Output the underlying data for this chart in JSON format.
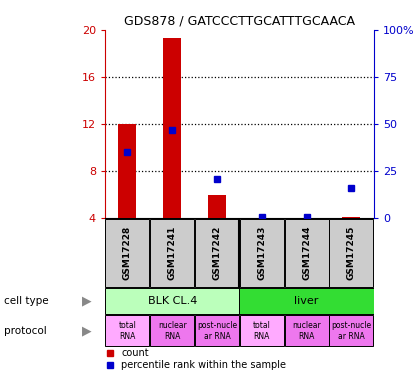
{
  "title": "GDS878 / GATCCCTTGCATTTGCAACA",
  "samples": [
    "GSM17228",
    "GSM17241",
    "GSM17242",
    "GSM17243",
    "GSM17244",
    "GSM17245"
  ],
  "counts": [
    12.0,
    19.3,
    6.0,
    4.05,
    4.05,
    4.1
  ],
  "pct_raw": [
    35,
    47,
    21,
    0.5,
    0.5,
    16
  ],
  "ylim_left": [
    4,
    20
  ],
  "ylim_right": [
    0,
    100
  ],
  "yticks_left": [
    4,
    8,
    12,
    16,
    20
  ],
  "yticks_right": [
    0,
    25,
    50,
    75,
    100
  ],
  "ytick_labels_left": [
    "4",
    "8",
    "12",
    "16",
    "20"
  ],
  "ytick_labels_right": [
    "0",
    "25",
    "50",
    "75",
    "100%"
  ],
  "left_axis_color": "#cc0000",
  "right_axis_color": "#0000cc",
  "bar_color": "#cc0000",
  "dot_color": "#0000cc",
  "cell_type_colors": [
    "#bbffbb",
    "#33dd33"
  ],
  "cell_type_labels": [
    "BLK CL.4",
    "liver"
  ],
  "proto_colors": [
    "#ffaaff",
    "#ee77ee",
    "#ee77ee",
    "#ffaaff",
    "#ee77ee",
    "#ee77ee"
  ],
  "proto_labels": [
    "total\nRNA",
    "nuclear\nRNA",
    "post-nucle\nar RNA",
    "total\nRNA",
    "nuclear\nRNA",
    "post-nucle\nar RNA"
  ],
  "sample_box_color": "#cccccc",
  "legend_count_color": "#cc0000",
  "legend_pct_color": "#0000cc",
  "bg_color": "#ffffff"
}
